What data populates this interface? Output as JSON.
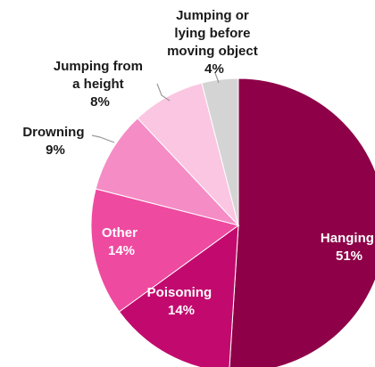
{
  "chart_data": {
    "type": "pie",
    "title": "",
    "slices": [
      {
        "name": "Hanging",
        "value": 51,
        "label": "51%",
        "color": "#8e0047"
      },
      {
        "name": "Poisoning",
        "value": 14,
        "label": "14%",
        "color": "#c20a6e"
      },
      {
        "name": "Other",
        "value": 14,
        "label": "14%",
        "color": "#ee4aa0"
      },
      {
        "name": "Drowning",
        "value": 9,
        "label": "9%",
        "color": "#f58cc5"
      },
      {
        "name": "Jumping from a height",
        "value": 8,
        "label": "8%",
        "color": "#fbc6e1"
      },
      {
        "name": "Jumping or lying before moving object",
        "value": 4,
        "label": "4%",
        "color": "#d4d4d4"
      }
    ],
    "label_lines": {
      "hanging": [
        "Hanging",
        "51%"
      ],
      "poisoning": [
        "Poisoning",
        "14%"
      ],
      "other": [
        "Other",
        "14%"
      ],
      "drowning": [
        "Drowning",
        "9%"
      ],
      "jumping_height": [
        "Jumping from",
        "a height",
        "8%"
      ],
      "jumping_moving": [
        "Jumping or",
        "lying before",
        "moving object",
        "4%"
      ]
    },
    "inside_label_color": "#ffffff",
    "outside_label_color": "#1a1a1a"
  }
}
